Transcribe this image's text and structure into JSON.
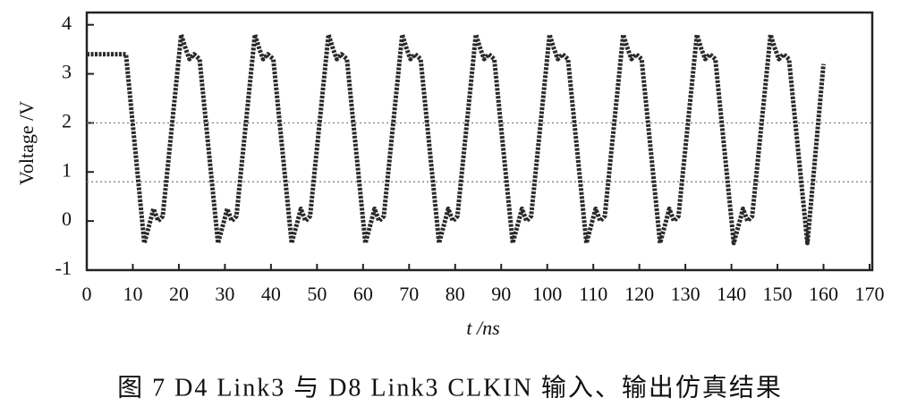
{
  "chart_data": {
    "type": "line",
    "x_label": "t /ns",
    "y_label": "Voltage /V",
    "caption": "图 7   D4 Link3 与 D8 Link3 CLKIN 输入、输出仿真结果",
    "color": "#2a2a2a",
    "xlim": [
      0,
      170
    ],
    "ylim": [
      -1,
      4.25
    ],
    "xticks": [
      0,
      10,
      20,
      30,
      40,
      50,
      60,
      70,
      80,
      90,
      100,
      110,
      120,
      130,
      140,
      150,
      160,
      170
    ],
    "yticks": [
      -1,
      0,
      1,
      2,
      3,
      4
    ],
    "reference_lines": [
      2,
      0.8
    ],
    "x": [
      0,
      8.5,
      12.5,
      13.8,
      14.5,
      15.5,
      16.5,
      20.5,
      21.5,
      22.3,
      23.3,
      24.5,
      28.5,
      29.8,
      30.5,
      31.5,
      32.5,
      36.5,
      37.5,
      38.3,
      39.3,
      40.5,
      44.5,
      45.8,
      46.5,
      47.5,
      48.5,
      52.5,
      53.5,
      54.3,
      55.3,
      56.5,
      60.5,
      61.8,
      62.5,
      63.5,
      64.5,
      68.5,
      69.5,
      70.3,
      71.3,
      72.5,
      76.5,
      77.8,
      78.5,
      79.5,
      80.5,
      84.5,
      85.5,
      86.3,
      87.3,
      88.5,
      92.5,
      93.8,
      94.5,
      95.5,
      96.5,
      100.5,
      101.5,
      102.3,
      103.3,
      104.5,
      108.5,
      109.8,
      110.5,
      111.5,
      112.5,
      116.5,
      117.5,
      118.3,
      119.3,
      120.5,
      124.5,
      125.8,
      126.5,
      127.5,
      128.5,
      132.5,
      133.5,
      134.3,
      135.3,
      136.5,
      140.5,
      141.8,
      142.5,
      143.5,
      144.5,
      148.5,
      149.5,
      150.3,
      151.3,
      152.5,
      156.5,
      160
    ],
    "values": [
      3.4,
      3.4,
      -0.45,
      0.0,
      0.25,
      0.0,
      0.1,
      3.8,
      3.5,
      3.3,
      3.4,
      3.3,
      -0.45,
      0.0,
      0.25,
      0.0,
      0.1,
      3.8,
      3.5,
      3.3,
      3.4,
      3.3,
      -0.45,
      0.0,
      0.25,
      0.0,
      0.1,
      3.8,
      3.5,
      3.3,
      3.4,
      3.3,
      -0.45,
      0.0,
      0.25,
      0.0,
      0.1,
      3.8,
      3.5,
      3.3,
      3.4,
      3.3,
      -0.45,
      0.0,
      0.25,
      0.0,
      0.1,
      3.8,
      3.5,
      3.3,
      3.4,
      3.3,
      -0.45,
      0.0,
      0.25,
      0.0,
      0.1,
      3.8,
      3.5,
      3.3,
      3.4,
      3.3,
      -0.45,
      0.0,
      0.25,
      0.0,
      0.1,
      3.8,
      3.5,
      3.3,
      3.4,
      3.3,
      -0.45,
      0.0,
      0.25,
      0.0,
      0.1,
      3.8,
      3.5,
      3.3,
      3.4,
      3.3,
      -0.45,
      0.0,
      0.25,
      0.0,
      0.1,
      3.8,
      3.5,
      3.3,
      3.4,
      3.3,
      -0.45,
      3.2
    ]
  }
}
